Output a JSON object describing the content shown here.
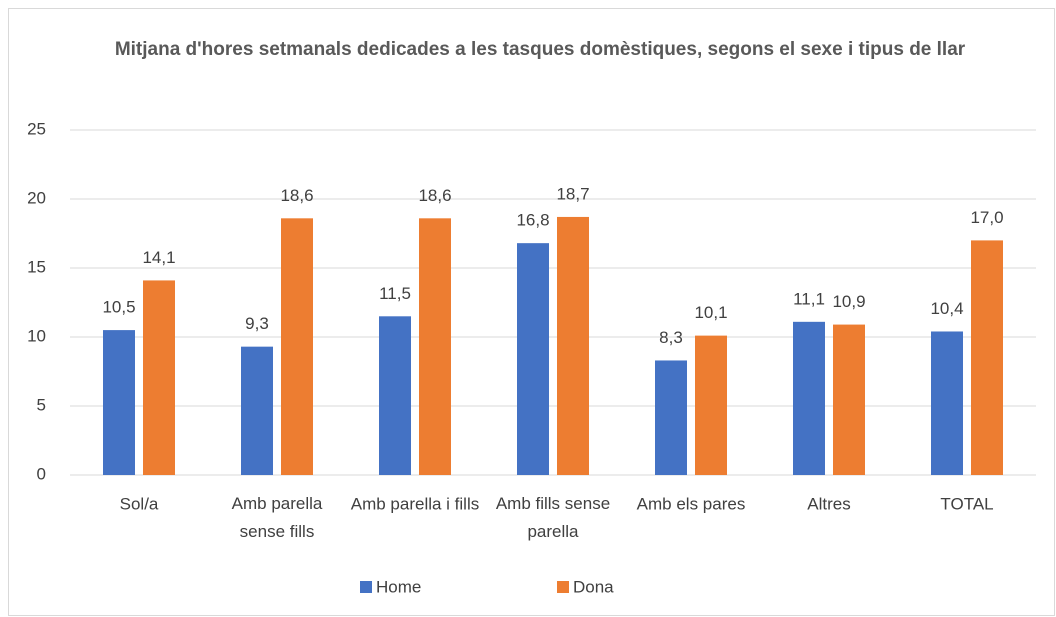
{
  "chart_data": {
    "type": "bar",
    "title": "Mitjana d'hores setmanals dedicades a les tasques domèstiques, segons el sexe i tipus de llar",
    "categories": [
      "Sol/a",
      "Amb parella sense fills",
      "Amb parella i fills",
      "Amb fills sense parella",
      "Amb els pares",
      "Altres",
      "TOTAL"
    ],
    "series": [
      {
        "name": "Home",
        "color": "#4472c4",
        "values": [
          10.5,
          9.3,
          11.5,
          16.8,
          8.3,
          11.1,
          10.4
        ],
        "value_labels": [
          "10,5",
          "9,3",
          "11,5",
          "16,8",
          "8,3",
          "11,1",
          "10,4"
        ]
      },
      {
        "name": "Dona",
        "color": "#ed7d31",
        "values": [
          14.1,
          18.6,
          18.6,
          18.7,
          10.1,
          10.9,
          17.0
        ],
        "value_labels": [
          "14,1",
          "18,6",
          "18,6",
          "18,7",
          "10,1",
          "10,9",
          "17,0"
        ]
      }
    ],
    "ylim": [
      0,
      25
    ],
    "yticks": [
      0,
      5,
      10,
      15,
      20,
      25
    ],
    "grid": true,
    "legend": "bottom"
  }
}
